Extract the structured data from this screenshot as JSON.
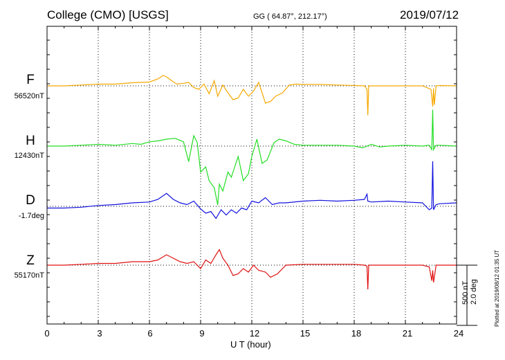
{
  "header": {
    "station": "College (CMO)  [USGS]",
    "coords": "GG ( 64.87°, 212.17°)",
    "date": "2019/07/12"
  },
  "footer": "Plotted at 2019/08/12 01:35 UT",
  "scale": {
    "line1": "500 nT",
    "line2": "2.0 deg"
  },
  "colors": {
    "F": "#f5a800",
    "H": "#22dd22",
    "D": "#1010e0",
    "Z": "#e01010"
  },
  "chart_data": {
    "type": "line",
    "title": "College (CMO)  [USGS]",
    "xlabel": "U T (hour)",
    "ylabel": "",
    "xlim": [
      0,
      24
    ],
    "x_ticks": [
      "0",
      "3",
      "6",
      "9",
      "12",
      "15",
      "18",
      "21",
      "24"
    ],
    "grid": true,
    "series": [
      {
        "name": "F",
        "baseline_label": "56520nT",
        "color": "#f5a800",
        "x": [
          0,
          1,
          2,
          3,
          4,
          5,
          6,
          6.5,
          6.8,
          7.0,
          7.3,
          7.6,
          8.0,
          8.3,
          8.6,
          8.9,
          9.2,
          9.5,
          9.8,
          10.0,
          10.3,
          10.6,
          10.9,
          11.2,
          11.5,
          11.8,
          12.1,
          12.4,
          12.8,
          13.1,
          13.4,
          13.8,
          14.2,
          14.6,
          15,
          16,
          17,
          18,
          18.6,
          18.75,
          18.8,
          18.85,
          19,
          20,
          21,
          22,
          22.5,
          22.6,
          22.65,
          22.7,
          22.8,
          23,
          24
        ],
        "y": [
          0,
          0,
          5,
          10,
          10,
          18,
          22,
          40,
          60,
          52,
          30,
          10,
          15,
          20,
          -10,
          -20,
          10,
          -45,
          30,
          -60,
          5,
          -40,
          -80,
          -70,
          -20,
          -60,
          -30,
          20,
          -100,
          -90,
          -60,
          -40,
          5,
          10,
          8,
          8,
          5,
          2,
          0,
          -20,
          -170,
          0,
          0,
          0,
          0,
          0,
          -20,
          -120,
          -15,
          -110,
          0,
          2,
          0
        ]
      },
      {
        "name": "H",
        "baseline_label": "12430nT",
        "color": "#22dd22",
        "x": [
          0,
          1,
          2,
          3,
          4,
          5,
          5.5,
          6,
          6.5,
          7.0,
          7.5,
          8.0,
          8.3,
          8.6,
          8.8,
          9.0,
          9.3,
          9.5,
          9.8,
          10.0,
          10.1,
          10.3,
          10.6,
          10.8,
          11.0,
          11.2,
          11.5,
          11.8,
          12.0,
          12.3,
          12.6,
          12.9,
          13.3,
          13.6,
          14.0,
          14.5,
          15,
          16,
          17,
          18,
          18.5,
          19,
          19.5,
          20,
          21,
          22,
          22.4,
          22.55,
          22.6,
          22.65,
          22.8,
          23,
          24
        ],
        "y": [
          0,
          0,
          5,
          10,
          5,
          15,
          10,
          25,
          30,
          40,
          45,
          25,
          -90,
          60,
          20,
          -150,
          -120,
          -200,
          -240,
          -340,
          -220,
          -260,
          -150,
          -180,
          -120,
          -60,
          -200,
          -160,
          -60,
          40,
          -100,
          -80,
          20,
          40,
          30,
          10,
          5,
          5,
          5,
          0,
          -10,
          10,
          -5,
          0,
          5,
          0,
          5,
          -20,
          210,
          -20,
          5,
          5,
          0
        ]
      },
      {
        "name": "D",
        "baseline_label": "-1.7deg",
        "color": "#1010e0",
        "x": [
          0,
          1,
          2,
          3,
          4,
          5,
          6,
          6.5,
          7.0,
          7.4,
          7.8,
          8.2,
          8.6,
          9.0,
          9.3,
          9.6,
          9.9,
          10.2,
          10.5,
          10.8,
          11.1,
          11.4,
          11.7,
          12.0,
          12.4,
          12.8,
          13.2,
          13.6,
          14,
          15,
          16,
          17,
          18,
          18.6,
          18.75,
          18.8,
          19,
          20,
          21,
          22,
          22.4,
          22.55,
          22.6,
          22.65,
          22.8,
          23,
          24
        ],
        "y": [
          -10,
          -10,
          -5,
          5,
          10,
          20,
          25,
          40,
          75,
          40,
          20,
          10,
          30,
          -15,
          -40,
          -30,
          -70,
          -20,
          -50,
          -20,
          -40,
          -10,
          -20,
          30,
          20,
          50,
          10,
          20,
          20,
          30,
          35,
          30,
          35,
          40,
          70,
          30,
          25,
          30,
          25,
          20,
          -20,
          -10,
          260,
          -20,
          10,
          15,
          20
        ]
      },
      {
        "name": "Z",
        "baseline_label": "55170nT",
        "color": "#e01010",
        "x": [
          0,
          1,
          2,
          3,
          4,
          5,
          6,
          6.5,
          7.0,
          7.4,
          7.8,
          8.2,
          8.6,
          9.0,
          9.3,
          9.6,
          9.9,
          10.1,
          10.3,
          10.6,
          10.9,
          11.2,
          11.5,
          11.8,
          12.1,
          12.4,
          12.8,
          13.1,
          13.5,
          14,
          15,
          16,
          17,
          18,
          18.6,
          18.75,
          18.8,
          18.85,
          19,
          20,
          21,
          22,
          22.4,
          22.55,
          22.6,
          22.65,
          22.8,
          23,
          24
        ],
        "y": [
          0,
          0,
          5,
          10,
          10,
          20,
          20,
          30,
          60,
          40,
          20,
          10,
          20,
          -20,
          30,
          10,
          60,
          90,
          40,
          0,
          -60,
          -50,
          -20,
          -40,
          0,
          -30,
          -40,
          -70,
          -50,
          0,
          5,
          5,
          5,
          5,
          0,
          -5,
          -140,
          0,
          0,
          0,
          0,
          0,
          -10,
          -90,
          -30,
          -100,
          0,
          0,
          0
        ]
      }
    ]
  }
}
